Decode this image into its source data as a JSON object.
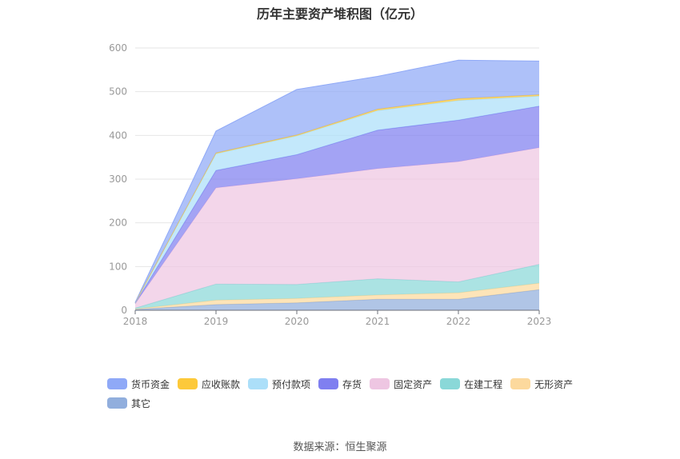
{
  "chart_data": {
    "type": "area",
    "stacked": true,
    "title": "历年主要资产堆积图（亿元）",
    "categories": [
      "2018",
      "2019",
      "2020",
      "2021",
      "2022",
      "2023"
    ],
    "ylim": [
      0,
      600
    ],
    "yticks": [
      0,
      100,
      200,
      300,
      400,
      500,
      600
    ],
    "grid": true,
    "legend_position": "bottom",
    "series": [
      {
        "name": "其它",
        "color": "#91aedd",
        "values": [
          2,
          13,
          17,
          25,
          25,
          47
        ]
      },
      {
        "name": "无形资产",
        "color": "#fcd99d",
        "values": [
          1,
          10,
          10,
          10,
          15,
          15
        ]
      },
      {
        "name": "在建工程",
        "color": "#8ad8d8",
        "values": [
          2,
          37,
          32,
          37,
          25,
          43
        ]
      },
      {
        "name": "固定资产",
        "color": "#eec6e2",
        "values": [
          10,
          220,
          242,
          252,
          275,
          267
        ]
      },
      {
        "name": "存货",
        "color": "#7f7ff0",
        "values": [
          1,
          40,
          55,
          88,
          95,
          95
        ]
      },
      {
        "name": "预付款项",
        "color": "#acdff9",
        "values": [
          1,
          38,
          43,
          45,
          45,
          23
        ]
      },
      {
        "name": "应收账款",
        "color": "#fdc93a",
        "values": [
          0.5,
          2,
          2,
          3,
          4,
          3
        ]
      },
      {
        "name": "货币资金",
        "color": "#8fa9f7",
        "values": [
          0.5,
          50,
          104,
          75,
          88,
          77
        ]
      }
    ]
  },
  "legend": [
    {
      "name": "货币资金",
      "color": "#8fa9f7"
    },
    {
      "name": "应收账款",
      "color": "#fdc93a"
    },
    {
      "name": "预付款项",
      "color": "#acdff9"
    },
    {
      "name": "存货",
      "color": "#7f7ff0"
    },
    {
      "name": "固定资产",
      "color": "#eec6e2"
    },
    {
      "name": "在建工程",
      "color": "#8ad8d8"
    },
    {
      "name": "无形资产",
      "color": "#fcd99d"
    },
    {
      "name": "其它",
      "color": "#91aedd"
    }
  ],
  "source": "数据来源：恒生聚源"
}
